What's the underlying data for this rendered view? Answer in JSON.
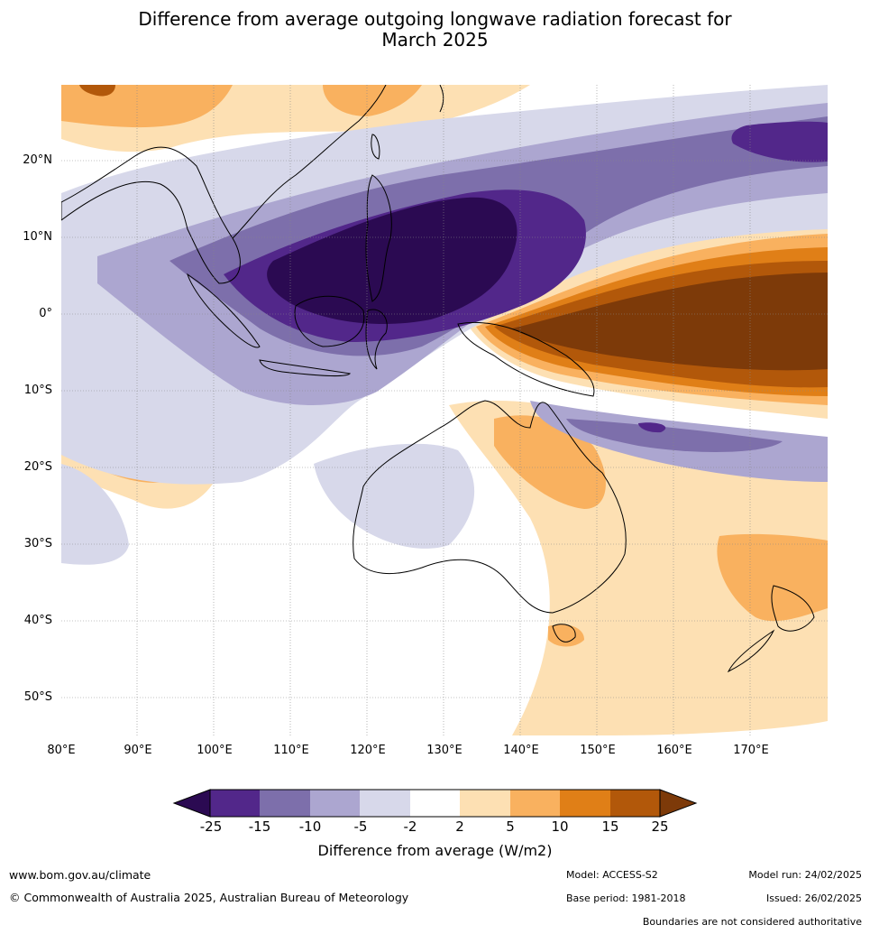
{
  "title_line1": "Difference from average outgoing longwave radiation forecast for",
  "title_line2": "March 2025",
  "lat_labels": [
    "20°N",
    "10°N",
    "0°",
    "10°S",
    "20°S",
    "30°S",
    "40°S",
    "50°S"
  ],
  "lon_labels": [
    "80°E",
    "90°E",
    "100°E",
    "110°E",
    "120°E",
    "130°E",
    "140°E",
    "150°E",
    "160°E",
    "170°E"
  ],
  "colorbar": {
    "ticks": [
      "-25",
      "-15",
      "-10",
      "-5",
      "-2",
      "2",
      "5",
      "10",
      "15",
      "25"
    ],
    "colors": {
      "lt_-25": "#2b0a52",
      "-25_-15": "#52278a",
      "-15_-10": "#7d6fab",
      "-10_-5": "#aca6d0",
      "-5_-2": "#d7d8ea",
      "-2_2": "#ffffff",
      "2_5": "#fde0b3",
      "5_10": "#f9b15f",
      "10_15": "#e07f17",
      "15_25": "#b2580a",
      "gt_25": "#7d3a09"
    },
    "label": "Difference from average (W/m2)"
  },
  "footer": {
    "website": "www.bom.gov.au/climate",
    "copyright": "© Commonwealth of Australia 2025, Australian Bureau of Meteorology",
    "model": "Model: ACCESS-S2",
    "base_period": "Base period: 1981-2018",
    "model_run": "Model run: 24/02/2025",
    "issued": "Issued: 26/02/2025",
    "disclaimer": "Boundaries are not considered authoritative"
  }
}
